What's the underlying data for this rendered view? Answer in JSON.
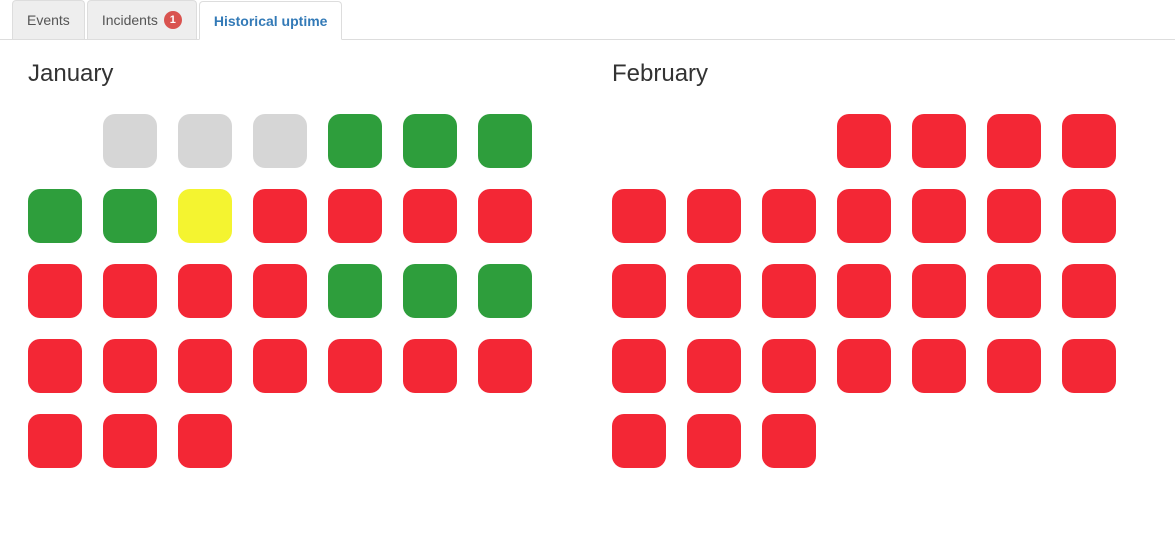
{
  "colors": {
    "gray": "#d6d6d6",
    "green": "#2e9e3c",
    "yellow": "#f4f430",
    "red": "#f32735",
    "badge_bg": "#d9534f",
    "active_tab_text": "#337ab7",
    "inactive_tab_bg": "#eeeeee"
  },
  "tabs": [
    {
      "key": "events",
      "label": "Events",
      "active": false,
      "badge": null
    },
    {
      "key": "incidents",
      "label": "Incidents",
      "active": false,
      "badge": "1"
    },
    {
      "key": "uptime",
      "label": "Historical uptime",
      "active": true,
      "badge": null
    }
  ],
  "months": [
    {
      "name": "January",
      "lead_blank": 1,
      "days": [
        "gray",
        "gray",
        "gray",
        "green",
        "green",
        "green",
        "green",
        "green",
        "yellow",
        "red",
        "red",
        "red",
        "red",
        "red",
        "red",
        "red",
        "red",
        "green",
        "green",
        "green",
        "red",
        "red",
        "red",
        "red",
        "red",
        "red",
        "red",
        "red",
        "red",
        "red"
      ]
    },
    {
      "name": "February",
      "lead_blank": 3,
      "days": [
        "red",
        "red",
        "red",
        "red",
        "red",
        "red",
        "red",
        "red",
        "red",
        "red",
        "red",
        "red",
        "red",
        "red",
        "red",
        "red",
        "red",
        "red",
        "red",
        "red",
        "red",
        "red",
        "red",
        "red",
        "red",
        "red",
        "red",
        "red"
      ]
    }
  ]
}
